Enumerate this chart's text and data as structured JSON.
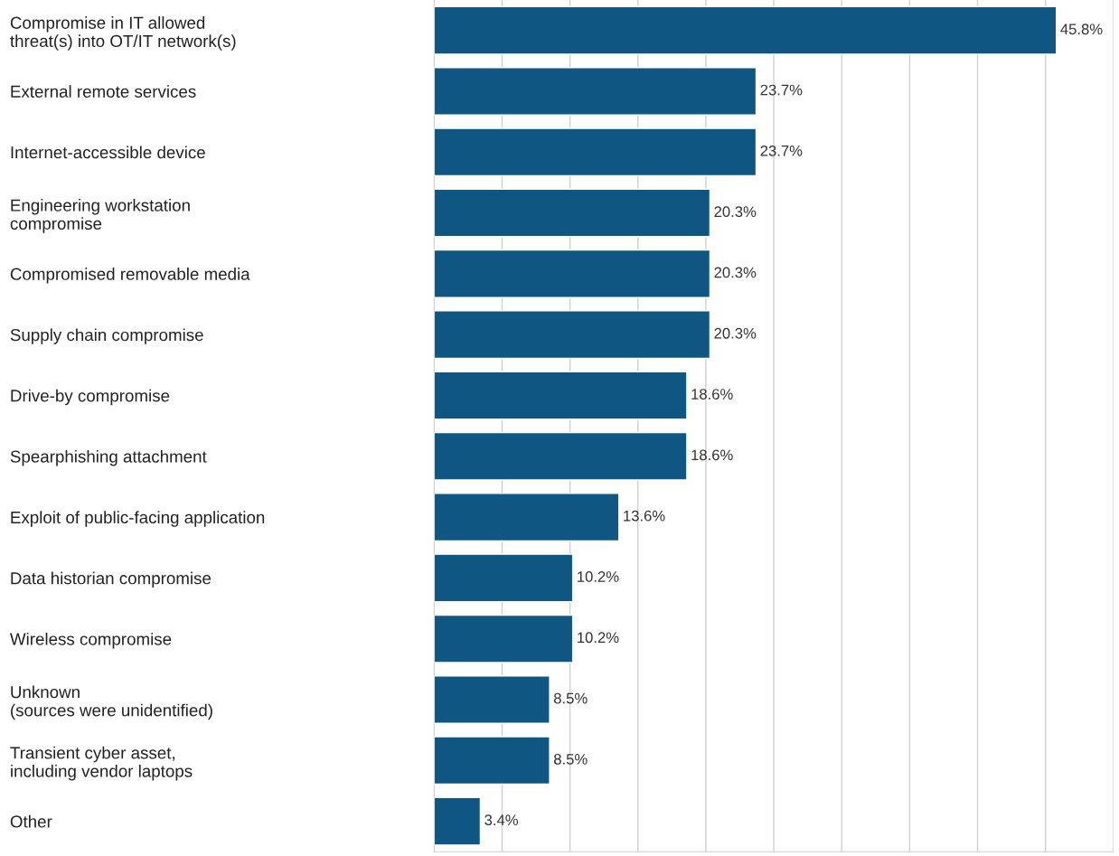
{
  "chart_data": {
    "type": "bar",
    "orientation": "horizontal",
    "categories": [
      "Compromise in IT allowed\nthreat(s) into OT/IT network(s)",
      "External remote services",
      "Internet-accessible device",
      "Engineering workstation\ncompromise",
      "Compromised removable media",
      "Supply chain compromise",
      "Drive-by compromise",
      "Spearphishing attachment",
      "Exploit of public-facing application",
      "Data historian compromise",
      "Wireless compromise",
      "Unknown\n(sources were unidentified)",
      "Transient cyber asset,\nincluding vendor laptops",
      "Other"
    ],
    "values": [
      45.8,
      23.7,
      23.7,
      20.3,
      20.3,
      20.3,
      18.6,
      18.6,
      13.6,
      10.2,
      10.2,
      8.5,
      8.5,
      3.4
    ],
    "value_labels": [
      "45.8%",
      "23.7%",
      "23.7%",
      "20.3%",
      "20.3%",
      "20.3%",
      "18.6%",
      "18.6%",
      "13.6%",
      "10.2%",
      "10.2%",
      "8.5%",
      "8.5%",
      "3.4%"
    ],
    "color": "#0f5782",
    "xlim": [
      0,
      50
    ],
    "xticks": [
      {
        "value": 0,
        "label": null
      },
      {
        "value": 5,
        "label": null
      },
      {
        "value": 10,
        "label": null
      },
      {
        "value": 15,
        "label": null
      },
      {
        "value": 20,
        "label": null
      },
      {
        "value": 25,
        "label": null
      },
      {
        "value": 30,
        "label": null
      },
      {
        "value": 35,
        "label": null
      },
      {
        "value": 40,
        "label": null
      },
      {
        "value": 45,
        "label": null
      },
      {
        "value": 50,
        "label": null
      }
    ],
    "grid": "x",
    "tick_labels": "y"
  }
}
